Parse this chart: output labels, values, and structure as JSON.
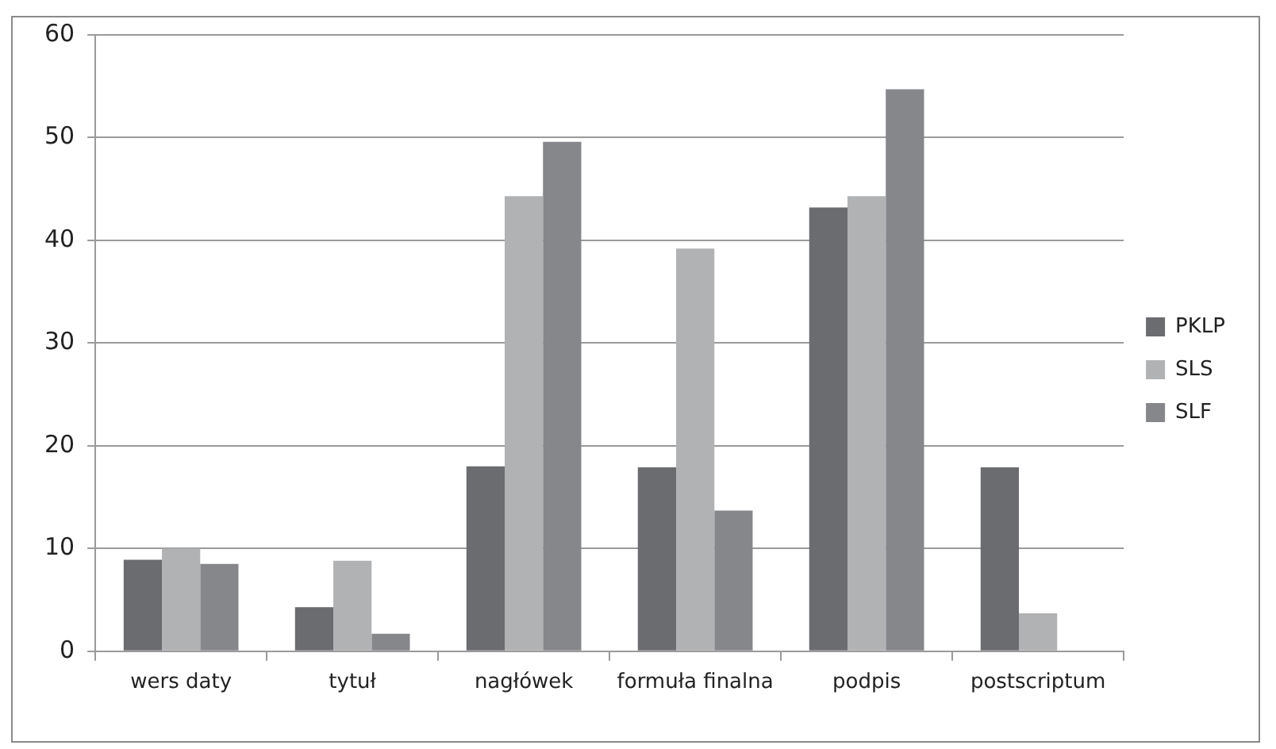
{
  "chart_data": {
    "type": "bar",
    "categories": [
      "wers daty",
      "tytuł",
      "nagłówek",
      "formuła finalna",
      "podpis",
      "postscriptum"
    ],
    "series": [
      {
        "name": "PKLP",
        "color": "#6b6c70",
        "values": [
          8.9,
          4.3,
          18.0,
          17.9,
          43.2,
          17.9
        ]
      },
      {
        "name": "SLS",
        "color": "#b0b2b4",
        "values": [
          10.0,
          8.8,
          44.3,
          39.2,
          44.3,
          3.7
        ]
      },
      {
        "name": "SLF",
        "color": "#86878b",
        "values": [
          8.5,
          1.7,
          49.6,
          13.7,
          54.7,
          null
        ]
      }
    ],
    "ylim": [
      0,
      60
    ],
    "yticks": [
      0,
      10,
      20,
      30,
      40,
      50,
      60
    ],
    "grid": "y",
    "legend": "right"
  }
}
